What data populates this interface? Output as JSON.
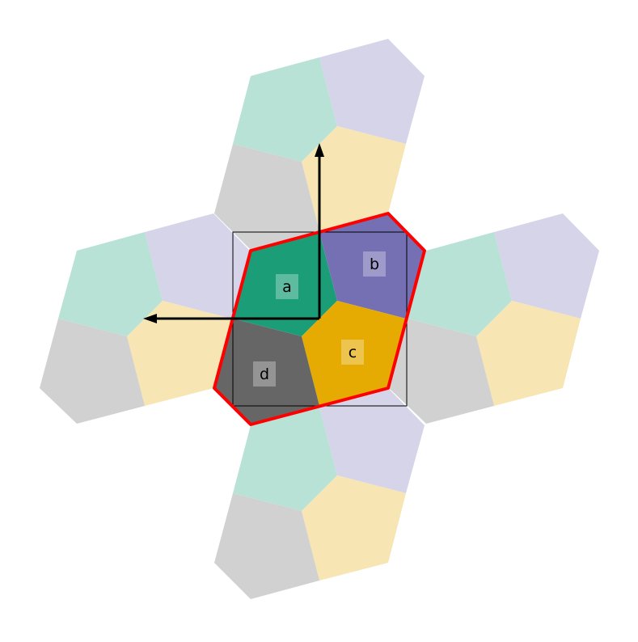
{
  "colors": {
    "a": "#1b9e77",
    "b": "#7570b3",
    "c": "#e6ab02",
    "d": "#666666",
    "a_faded": "#b9e2d6",
    "b_faded": "#d6d4e8",
    "c_faded": "#f7e5b3",
    "d_faded": "#d1d1d1",
    "outline": "#ff0000",
    "arrow": "#000000",
    "frame": "#000000"
  },
  "labels": {
    "a": "a",
    "b": "b",
    "c": "c",
    "d": "d"
  }
}
